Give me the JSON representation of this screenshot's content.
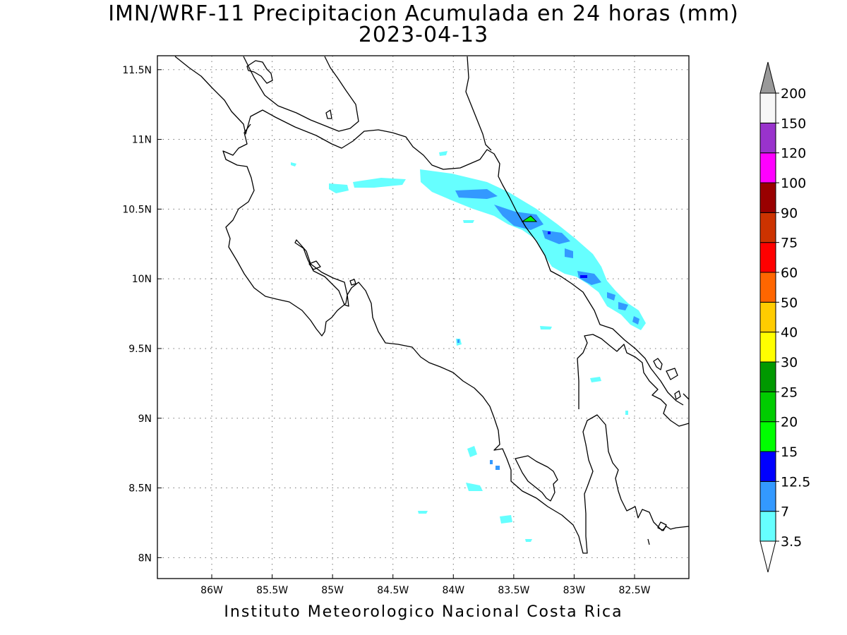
{
  "title": {
    "line1": "IMN/WRF-11 Precipitacion Acumulada en 24 horas (mm)",
    "line2": "2023-04-13"
  },
  "footer": "Instituto Meteorologico Nacional Costa Rica",
  "map": {
    "lon_range": [
      -86.45,
      -82.05
    ],
    "lat_range": [
      7.85,
      11.6
    ],
    "lon_ticks": [
      {
        "value": -86.0,
        "label": "86W"
      },
      {
        "value": -85.5,
        "label": "85.5W"
      },
      {
        "value": -85.0,
        "label": "85W"
      },
      {
        "value": -84.5,
        "label": "84.5W"
      },
      {
        "value": -84.0,
        "label": "84W"
      },
      {
        "value": -83.5,
        "label": "83.5W"
      },
      {
        "value": -83.0,
        "label": "83W"
      },
      {
        "value": -82.5,
        "label": "82.5W"
      }
    ],
    "lat_ticks": [
      {
        "value": 11.5,
        "label": "11.5N"
      },
      {
        "value": 11.0,
        "label": "11N"
      },
      {
        "value": 10.5,
        "label": "10.5N"
      },
      {
        "value": 10.0,
        "label": "10N"
      },
      {
        "value": 9.5,
        "label": "9.5N"
      },
      {
        "value": 9.0,
        "label": "9N"
      },
      {
        "value": 8.5,
        "label": "8.5N"
      },
      {
        "value": 8.0,
        "label": "8N"
      }
    ],
    "grid": true
  },
  "colorbar": {
    "levels": [
      "3.5",
      "7",
      "12.5",
      "15",
      "20",
      "25",
      "30",
      "40",
      "50",
      "60",
      "75",
      "90",
      "100",
      "120",
      "150",
      "200"
    ],
    "colors": [
      "#66ffff",
      "#3399ff",
      "#0000ff",
      "#00ff00",
      "#00cc00",
      "#009900",
      "#ffff00",
      "#ffcc00",
      "#ff6600",
      "#ff0000",
      "#cc3300",
      "#990000",
      "#ff00ff",
      "#9933cc",
      "#f7f7f7"
    ],
    "over_color": "#999999",
    "under_color": "#ffffff"
  }
}
